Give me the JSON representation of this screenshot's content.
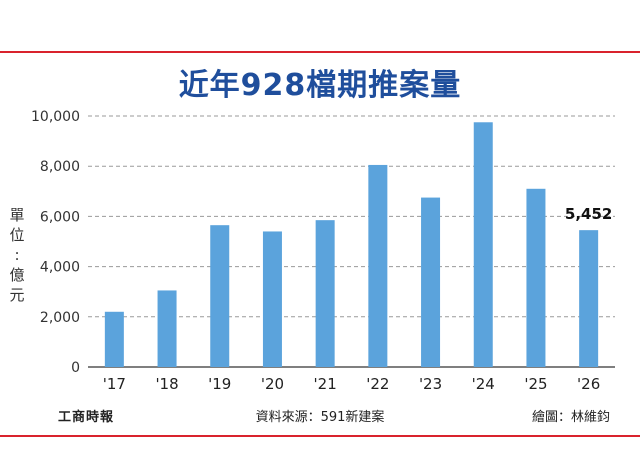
{
  "title": "近年928檔期推案量",
  "unit_label": [
    "單",
    "位",
    ":",
    "億",
    "元"
  ],
  "footer": {
    "publisher": "工商時報",
    "source": "資料來源：591新建案",
    "credit": "繪圖：林維鈞"
  },
  "colors": {
    "bar": "#5ba3dc",
    "title": "#1f4e9c",
    "rule": "#d9232d",
    "grid": "#9a9a9a"
  },
  "chart_data": {
    "type": "bar",
    "categories": [
      "'17",
      "'18",
      "'19",
      "'20",
      "'21",
      "'22",
      "'23",
      "'24",
      "'25",
      "'26"
    ],
    "values": [
      2200,
      3050,
      5650,
      5400,
      5850,
      8050,
      6750,
      9750,
      7100,
      5452
    ],
    "annotations": [
      {
        "category": "'26",
        "text": "5,452"
      }
    ],
    "ylim": [
      0,
      10000
    ],
    "yticks": [
      0,
      2000,
      4000,
      6000,
      8000,
      10000
    ],
    "ytick_labels": [
      "0",
      "2,000",
      "4,000",
      "6,000",
      "8,000",
      "10,000"
    ],
    "title": "近年928檔期推案量",
    "xlabel": "",
    "ylabel": "單位：億元",
    "grid": true
  }
}
